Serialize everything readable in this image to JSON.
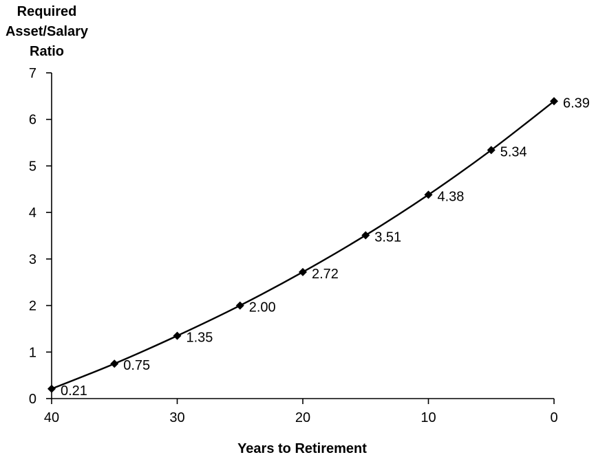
{
  "chart_data": {
    "type": "line",
    "title": "",
    "ylabel": [
      "Required",
      "Asset/Salary",
      "Ratio"
    ],
    "xlabel": "Years to Retirement",
    "x": [
      40,
      35,
      30,
      25,
      20,
      15,
      10,
      5,
      0
    ],
    "series": [
      {
        "values": [
          0.21,
          0.75,
          1.35,
          2.0,
          2.72,
          3.51,
          4.38,
          5.34,
          6.39
        ],
        "data_labels": [
          "0.21",
          "0.75",
          "1.35",
          "2.00",
          "2.72",
          "3.51",
          "4.38",
          "5.34",
          "6.39"
        ],
        "color": "#000000",
        "marker": "diamond"
      }
    ],
    "xlim": [
      40,
      0
    ],
    "ylim": [
      0,
      7
    ],
    "x_reversed": true,
    "x_ticks": [
      40,
      30,
      20,
      10,
      0
    ],
    "y_ticks": [
      0,
      1,
      2,
      3,
      4,
      5,
      6,
      7
    ],
    "grid": false,
    "legend": "none",
    "line_style": "smooth"
  }
}
